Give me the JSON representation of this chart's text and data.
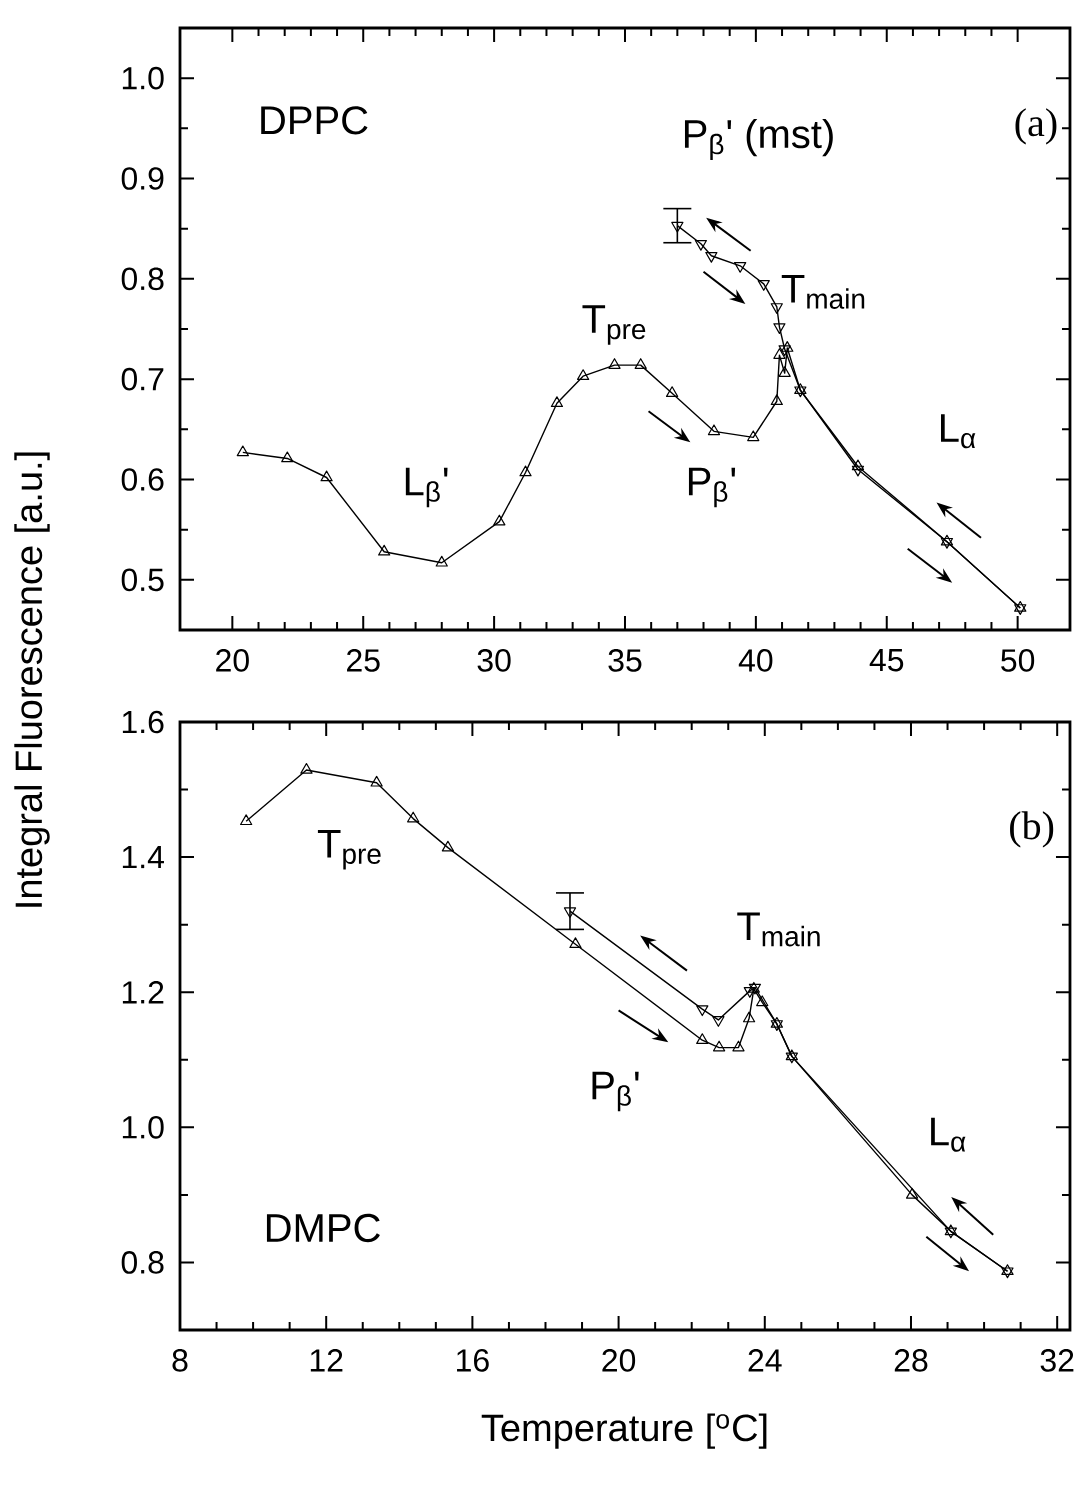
{
  "chart_data": [
    {
      "type": "line",
      "ylabel": "Integral Fluorescence [a.u.]",
      "xlim": [
        18,
        52
      ],
      "ylim": [
        0.45,
        1.05
      ],
      "xticks": [
        20,
        25,
        30,
        35,
        40,
        45,
        50
      ],
      "yticks": [
        0.5,
        0.6,
        0.7,
        0.8,
        0.9,
        {
          "value": 1.0,
          "label": "1.0"
        }
      ],
      "annotations": [
        "DPPC",
        "(a)",
        "P$_{β}$' (mst)",
        "T$_{main}$",
        "T$_{pre}$",
        "L$_{β}$'",
        "P$_{β}$'",
        "L$_{α}$"
      ],
      "series": [
        {
          "color": "#000000",
          "marker": "triangle",
          "x": [
            20.4,
            22.1,
            23.6,
            25.8,
            28.0,
            30.2,
            31.2,
            32.4,
            33.4,
            34.6,
            35.6,
            36.8,
            38.4,
            39.9,
            40.8,
            40.9,
            41.1,
            41.2,
            41.7,
            43.9,
            47.3,
            50.1
          ],
          "values": [
            0.627,
            0.621,
            0.602,
            0.528,
            0.517,
            0.558,
            0.607,
            0.676,
            0.703,
            0.714,
            0.714,
            0.686,
            0.648,
            0.642,
            0.678,
            0.724,
            0.706,
            0.731,
            0.689,
            0.613,
            0.538,
            0.472
          ]
        },
        {
          "color": "#000000",
          "marker": "triangle",
          "x": [
            37.0,
            37.9,
            38.3,
            39.4,
            40.3,
            40.8,
            40.9,
            41.1,
            41.7,
            43.9,
            47.3,
            50.1
          ],
          "values": [
            0.853,
            0.835,
            0.823,
            0.813,
            0.795,
            0.772,
            0.752,
            0.73,
            0.689,
            0.61,
            0.538,
            0.472
          ],
          "errors": [
            0.017,
            null,
            null,
            null,
            null,
            null,
            null,
            null,
            null,
            null,
            null,
            null
          ]
        }
      ]
    },
    {
      "type": "line",
      "xlabel": "Temperature [$^{o}$C]",
      "xlim": [
        8,
        32.35
      ],
      "ylim": [
        0.7,
        1.6
      ],
      "xticks": [
        8,
        12,
        16,
        20,
        24,
        28,
        32
      ],
      "yticks": [
        0.8,
        {
          "value": 1.0,
          "label": "1.0"
        },
        1.2,
        1.4,
        1.6
      ],
      "annotations": [
        "DMPC",
        "(b)",
        "T$_{pre}$",
        "T$_{main}$",
        "P$_{β}$'",
        "L$_{α}$"
      ],
      "series": [
        {
          "color": "#000000",
          "marker": "triangle",
          "x": [
            9.81,
            11.46,
            13.38,
            14.38,
            15.33,
            18.82,
            22.29,
            22.75,
            23.28,
            23.57,
            23.7,
            23.93,
            24.33,
            24.74,
            28.03,
            29.09,
            30.64
          ],
          "values": [
            1.453,
            1.529,
            1.51,
            1.457,
            1.414,
            1.271,
            1.129,
            1.118,
            1.118,
            1.161,
            1.205,
            1.185,
            1.153,
            1.105,
            0.9,
            0.846,
            0.787
          ]
        },
        {
          "color": "#000000",
          "marker": "triangle",
          "x": [
            18.67,
            22.29,
            22.73,
            23.59,
            23.73,
            24.33,
            24.74,
            29.09,
            30.64
          ],
          "values": [
            1.32,
            1.175,
            1.159,
            1.202,
            1.207,
            1.153,
            1.105,
            0.846,
            0.787
          ],
          "errors": [
            0.027,
            null,
            null,
            null,
            null,
            null,
            null,
            null,
            null
          ]
        }
      ]
    }
  ]
}
